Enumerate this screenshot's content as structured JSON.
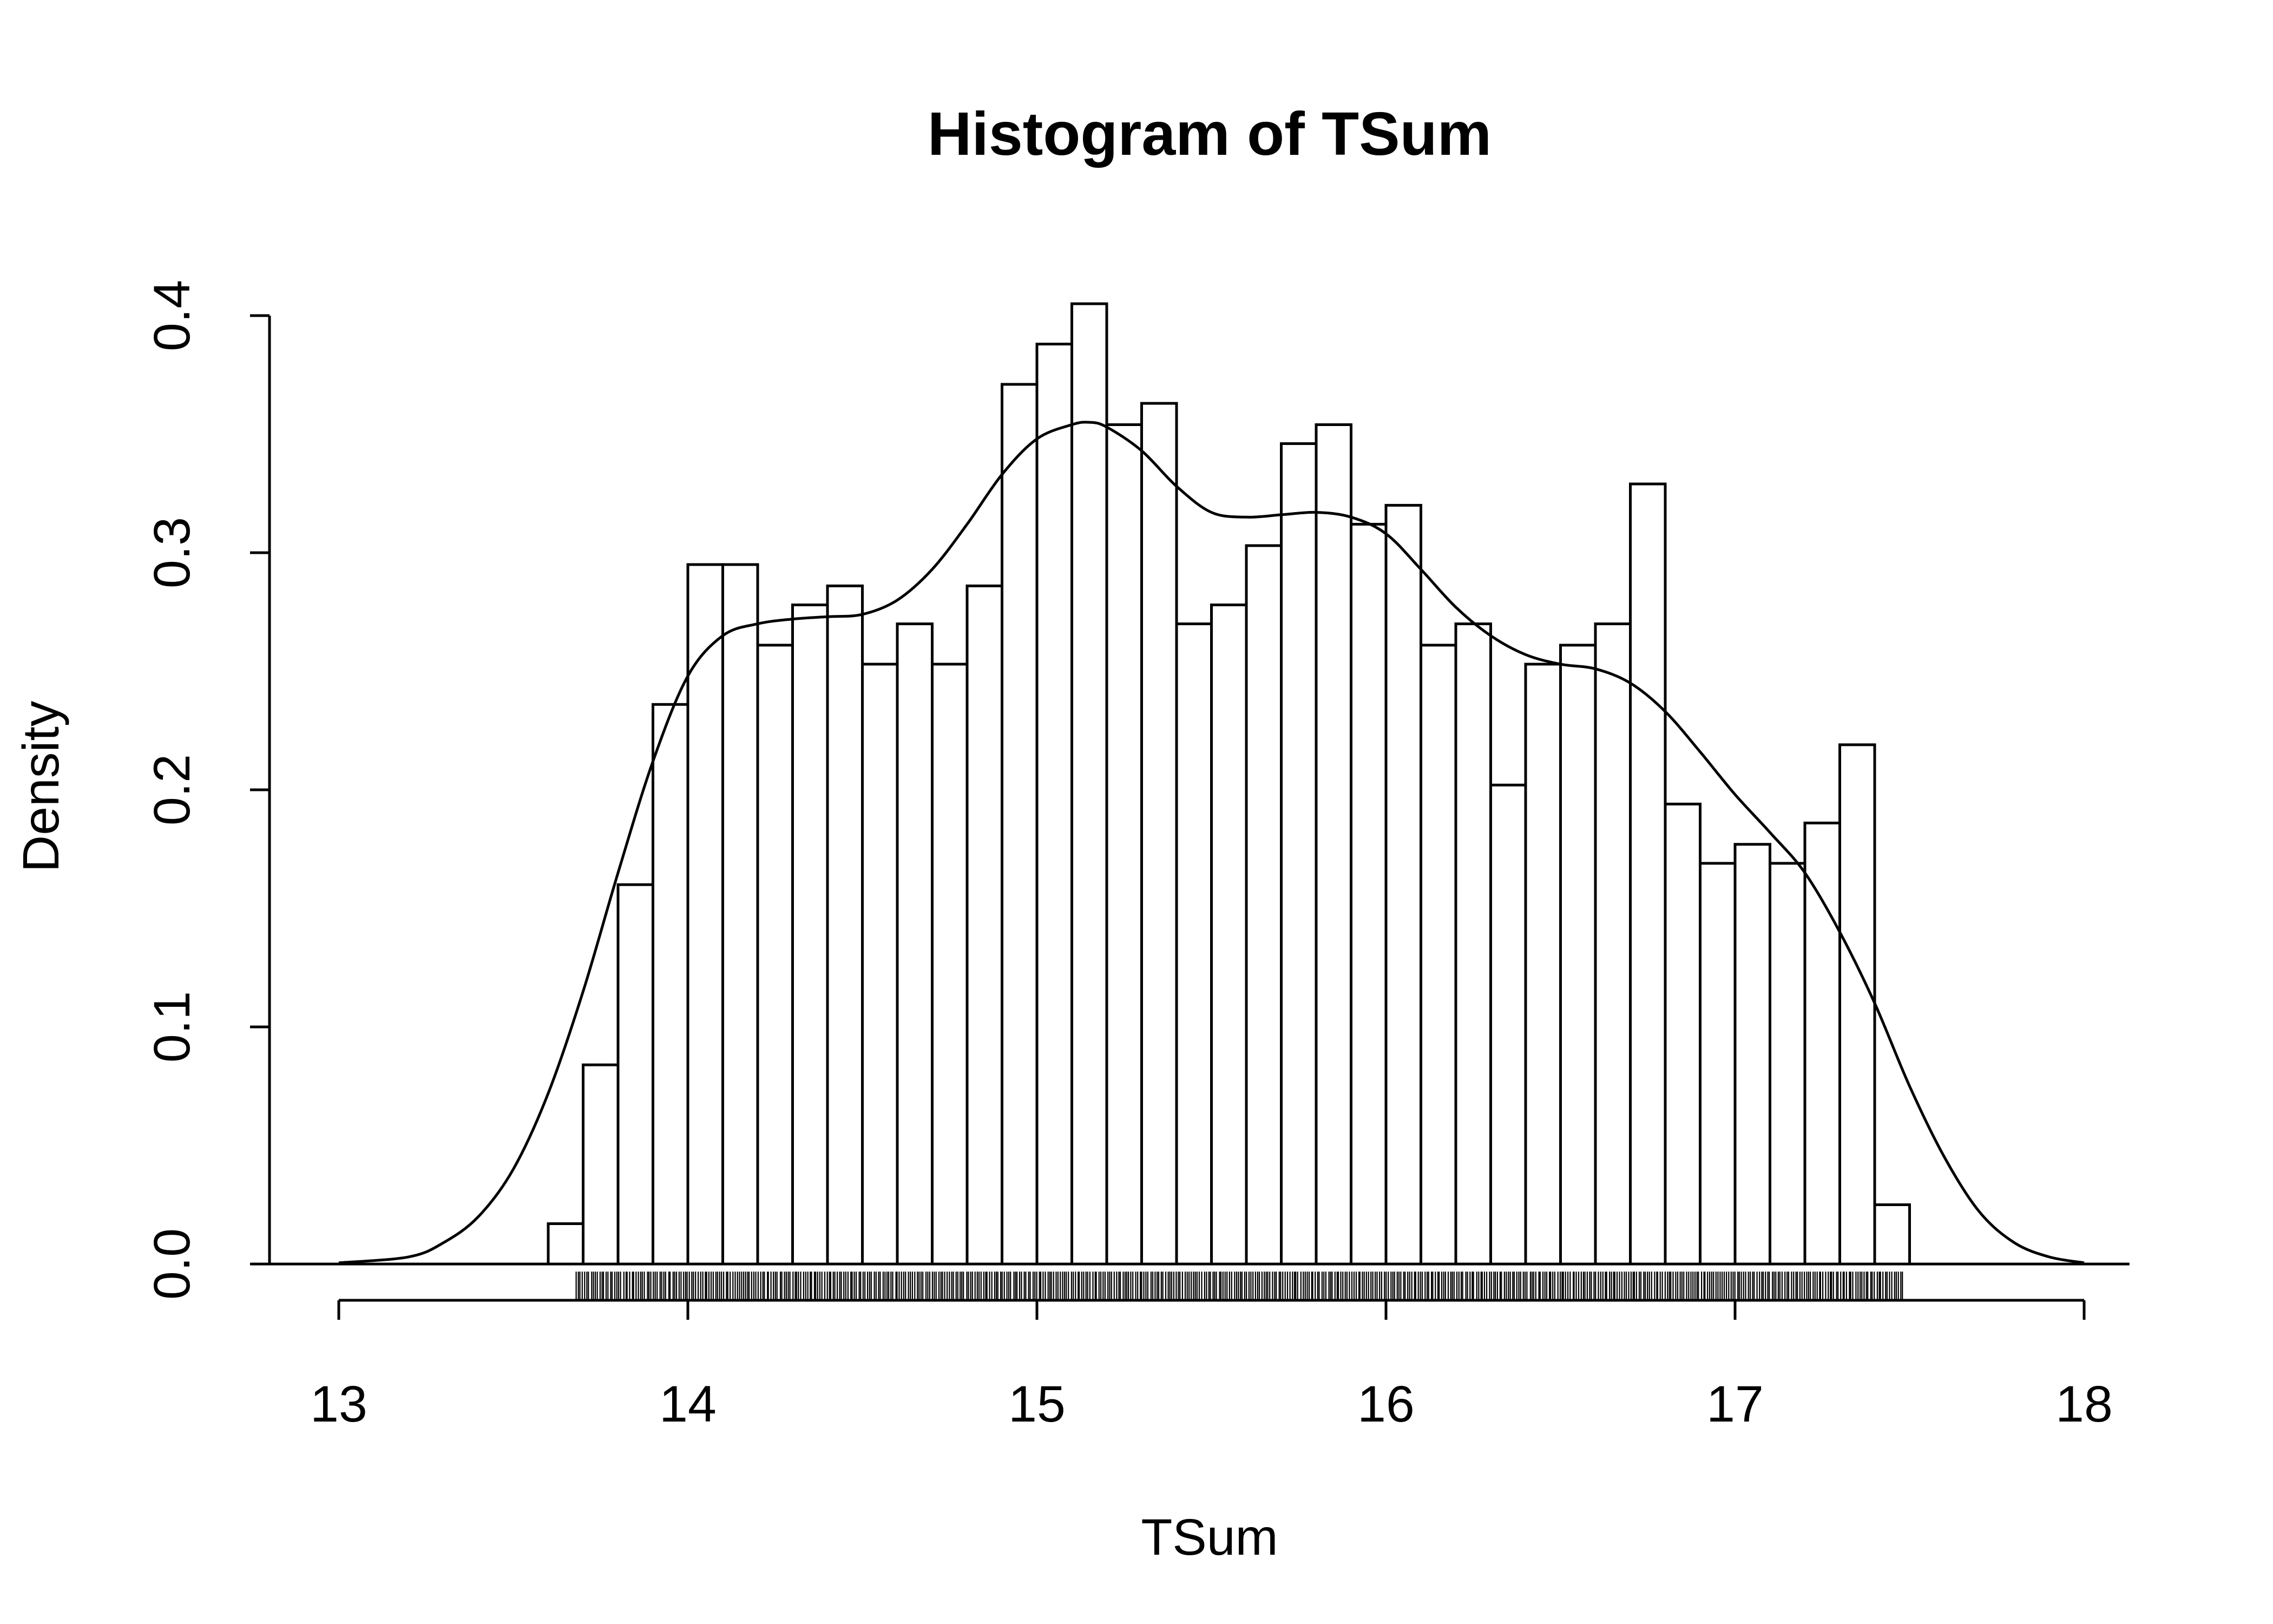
{
  "chart_data": {
    "type": "histogram",
    "title": "Histogram of TSum",
    "xlabel": "TSum",
    "ylabel": "Density",
    "xlim": [
      12.8,
      18.13
    ],
    "ylim": [
      0,
      0.4
    ],
    "x_ticks": [
      13,
      14,
      15,
      16,
      17,
      18
    ],
    "x_tick_labels": [
      "13",
      "14",
      "15",
      "16",
      "17",
      "18"
    ],
    "y_ticks": [
      0,
      0.1,
      0.2,
      0.3,
      0.4
    ],
    "y_tick_labels": [
      "0.0",
      "0.1",
      "0.2",
      "0.3",
      "0.4"
    ],
    "bin_width": 0.1,
    "bin_start": 13.6,
    "values": [
      0.017,
      0.084,
      0.16,
      0.236,
      0.295,
      0.295,
      0.261,
      0.278,
      0.286,
      0.253,
      0.27,
      0.253,
      0.286,
      0.371,
      0.388,
      0.405,
      0.354,
      0.363,
      0.27,
      0.278,
      0.303,
      0.346,
      0.354,
      0.312,
      0.32,
      0.261,
      0.27,
      0.202,
      0.253,
      0.261,
      0.27,
      0.329,
      0.194,
      0.169,
      0.177,
      0.169,
      0.186,
      0.219,
      0.025
    ],
    "density_curve": {
      "x": [
        13.0,
        13.2,
        13.3,
        13.4,
        13.5,
        13.6,
        13.7,
        13.8,
        13.9,
        14.0,
        14.1,
        14.2,
        14.3,
        14.4,
        14.5,
        14.6,
        14.7,
        14.8,
        14.9,
        15.0,
        15.1,
        15.15,
        15.2,
        15.3,
        15.4,
        15.5,
        15.6,
        15.7,
        15.8,
        15.9,
        16.0,
        16.1,
        16.2,
        16.3,
        16.4,
        16.5,
        16.6,
        16.7,
        16.8,
        16.9,
        17.0,
        17.1,
        17.2,
        17.3,
        17.4,
        17.5,
        17.6,
        17.7,
        17.8,
        17.9,
        18.0
      ],
      "y": [
        0.0005,
        0.003,
        0.009,
        0.02,
        0.04,
        0.072,
        0.115,
        0.165,
        0.212,
        0.248,
        0.265,
        0.27,
        0.272,
        0.273,
        0.274,
        0.28,
        0.293,
        0.312,
        0.333,
        0.348,
        0.354,
        0.355,
        0.353,
        0.343,
        0.328,
        0.317,
        0.315,
        0.316,
        0.317,
        0.315,
        0.308,
        0.293,
        0.277,
        0.265,
        0.257,
        0.253,
        0.251,
        0.245,
        0.233,
        0.216,
        0.198,
        0.182,
        0.165,
        0.14,
        0.11,
        0.075,
        0.045,
        0.022,
        0.009,
        0.003,
        0.0005
      ]
    },
    "rug_present": true
  }
}
